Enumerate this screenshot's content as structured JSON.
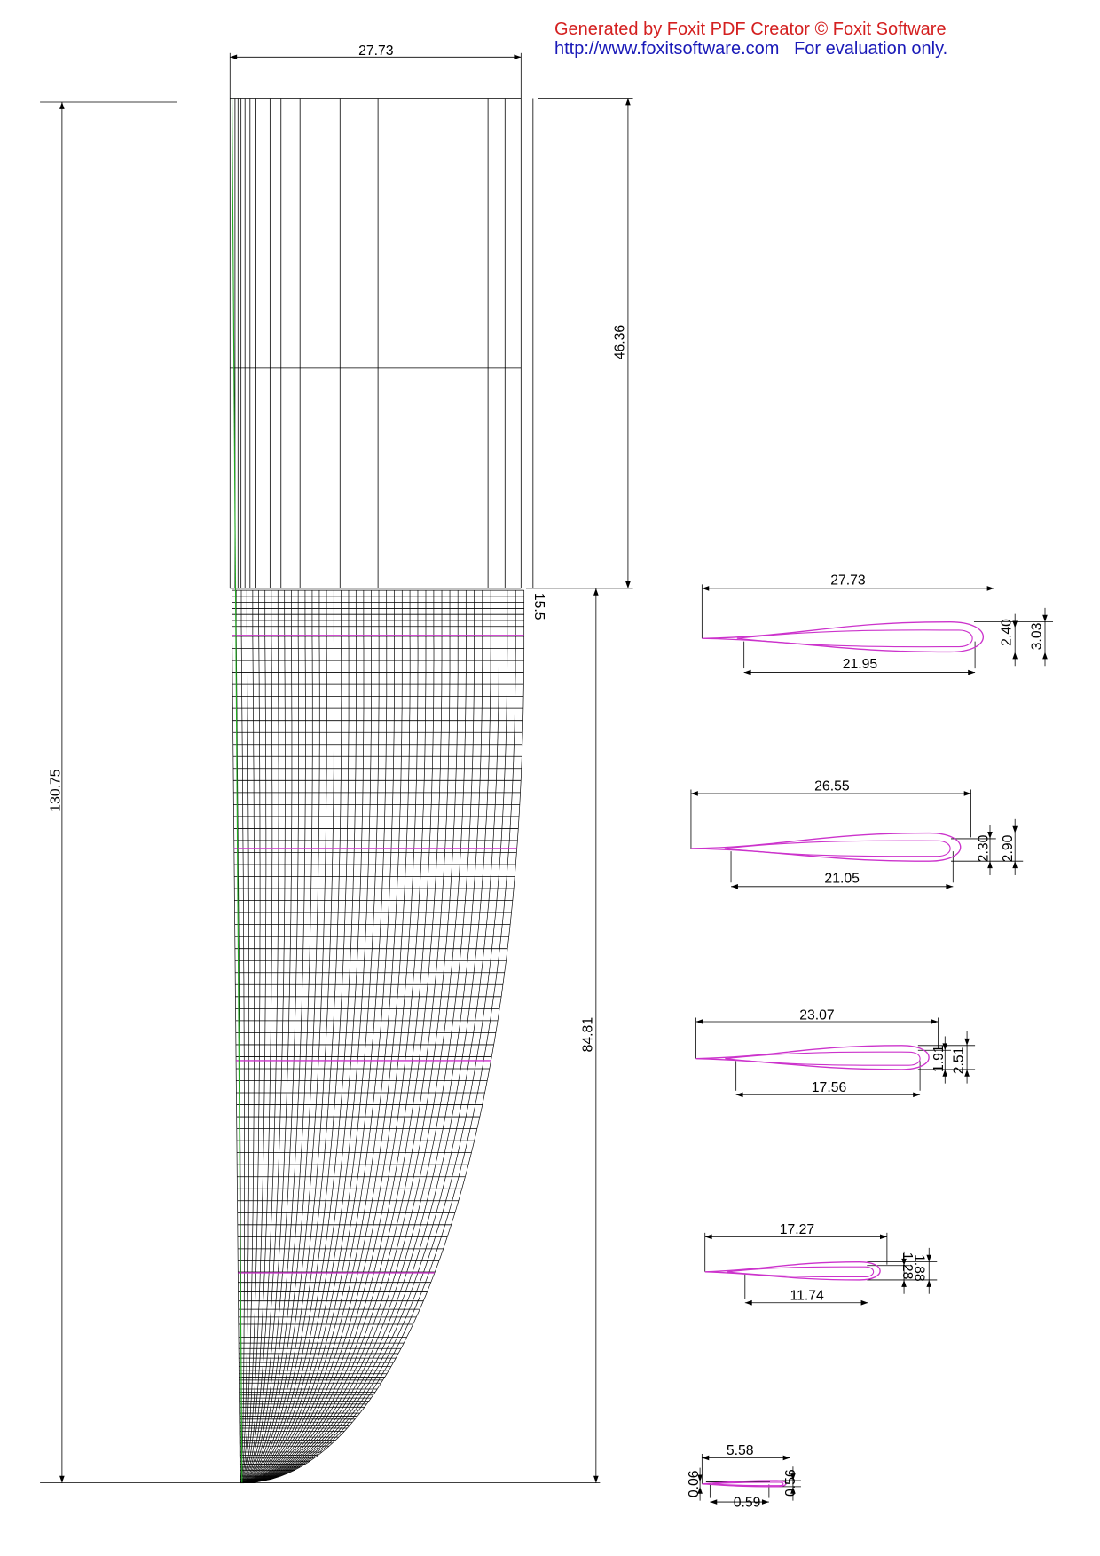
{
  "watermark": {
    "line1": "Generated by Foxit PDF Creator © Foxit Software",
    "line2_url": "http://www.foxitsoftware.com",
    "line2_note": "For evaluation only."
  },
  "colors": {
    "mesh": "#000000",
    "section": "#cc33cc",
    "pitch_axis": "#22aa22",
    "watermark_red": "#d42020",
    "watermark_blue": "#1a1ab8"
  },
  "blade_dims": {
    "root_chord": "27.73",
    "total_length": "130.75",
    "cylinder_length": "46.36",
    "transition": "15.5",
    "blade_length": "84.81"
  },
  "sections": [
    {
      "chord": "27.73",
      "inner": "21.95",
      "t1": "2.40",
      "t2": "3.03"
    },
    {
      "chord": "26.55",
      "inner": "21.05",
      "t1": "2.30",
      "t2": "2.90"
    },
    {
      "chord": "23.07",
      "inner": "17.56",
      "t1": "1.91",
      "t2": "2.51"
    },
    {
      "chord": "17.27",
      "inner": "11.74",
      "t1": "1.28",
      "t2": "1.88"
    },
    {
      "chord": "5.58",
      "inner": "0.59",
      "t1": "0.06",
      "t2": "0.56"
    }
  ]
}
